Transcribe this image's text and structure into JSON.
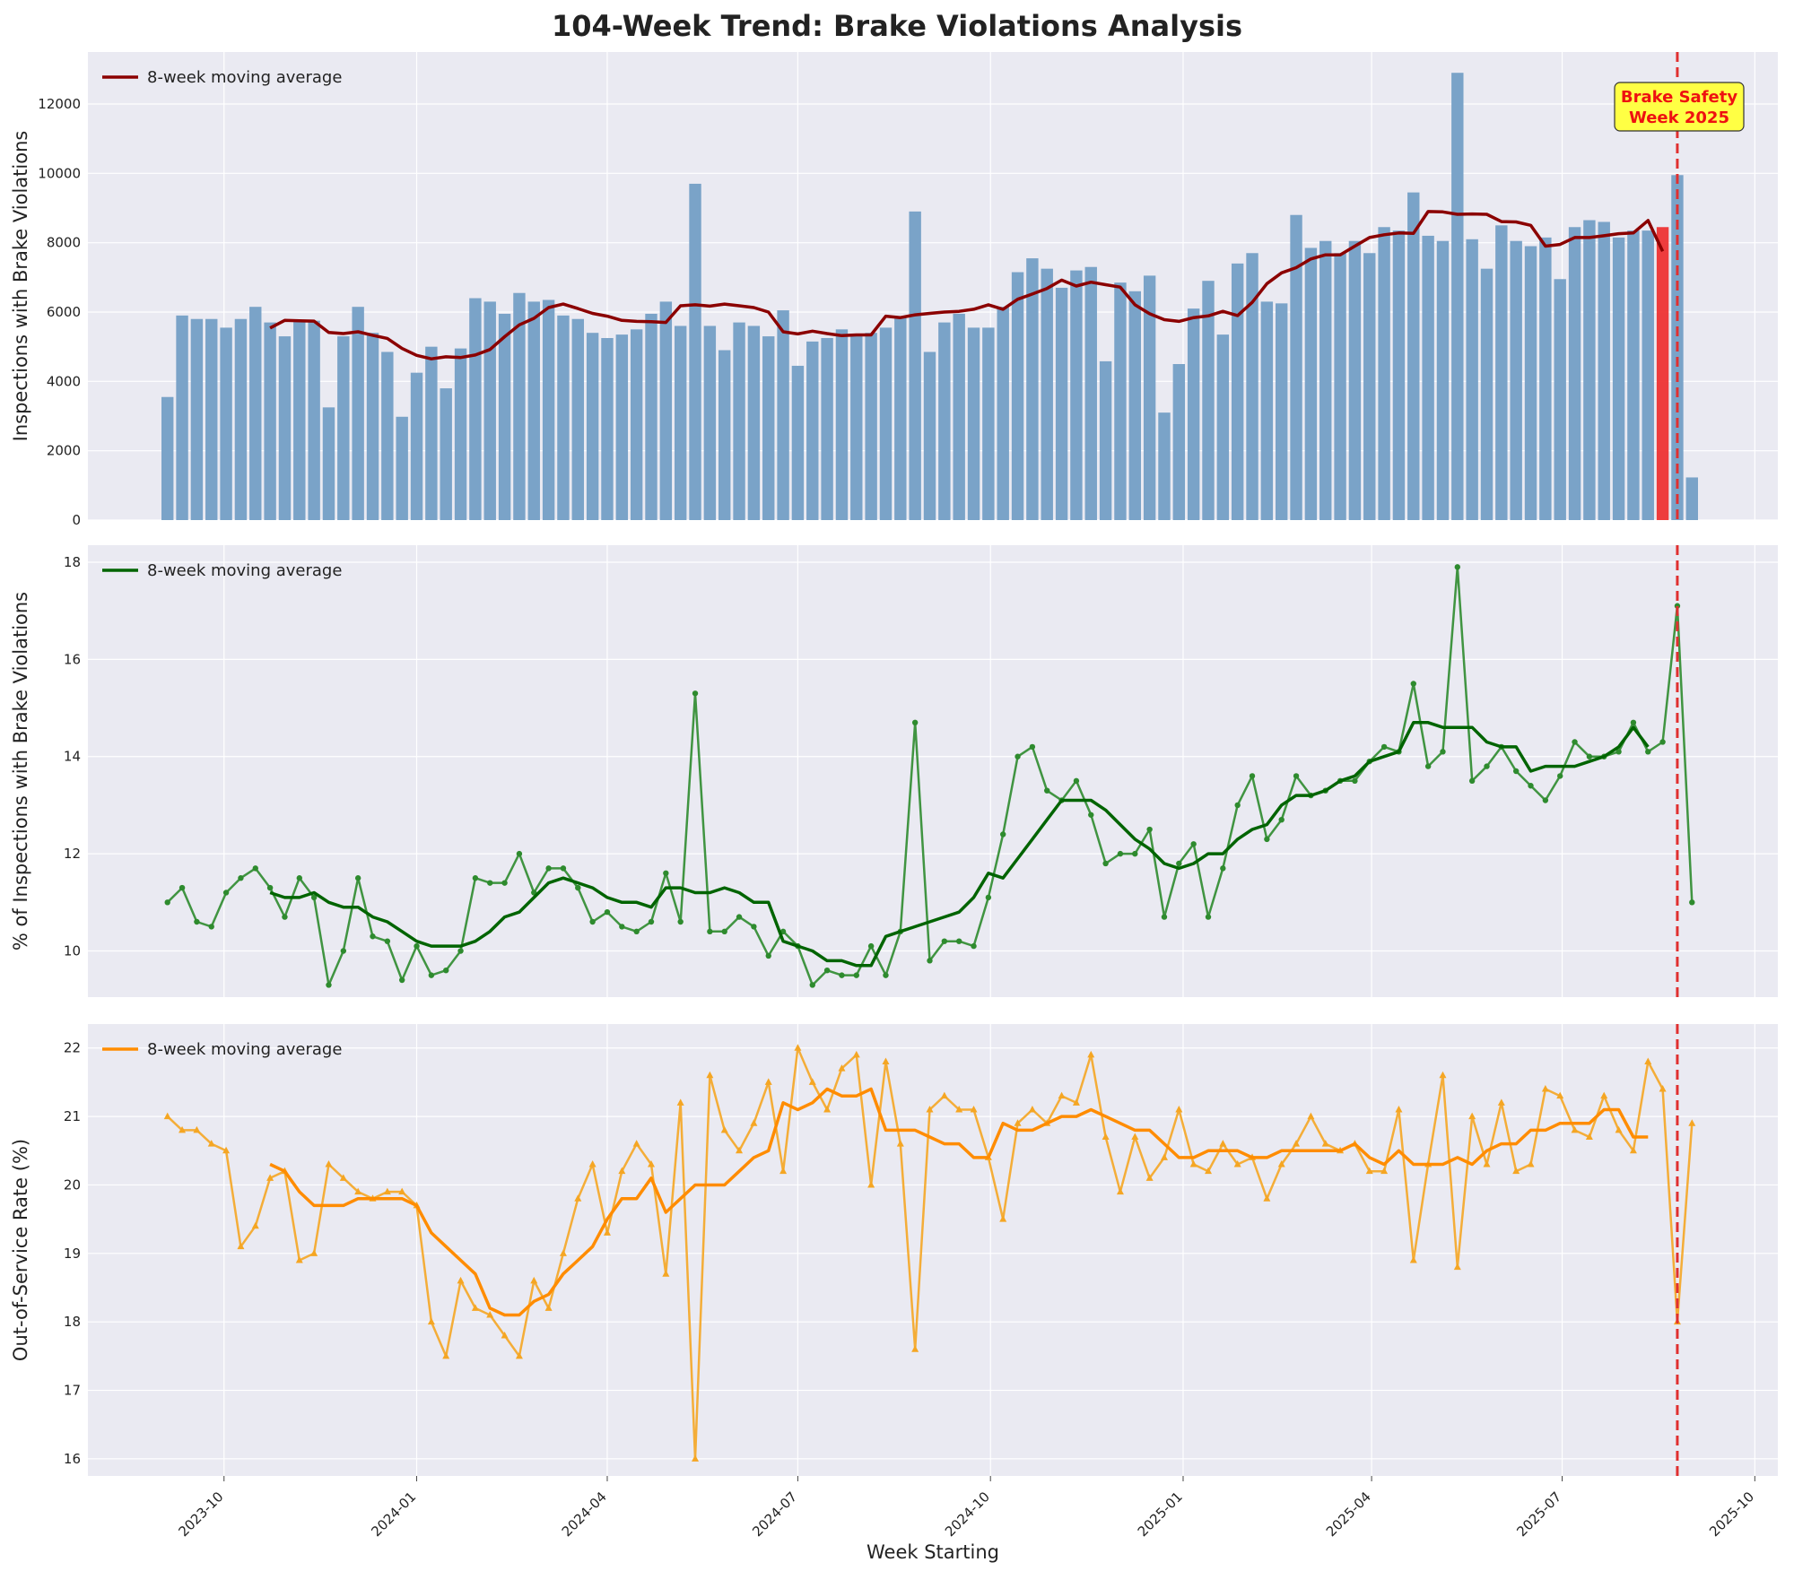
{
  "figure_title": "104-Week Trend: Brake Violations Analysis",
  "annotation": {
    "line1": "Brake Safety",
    "line2": "Week 2025",
    "event_date": "2025-08-25"
  },
  "colors": {
    "panel_bg": "#eaeaf2",
    "grid": "#ffffff",
    "bar": "#7aa3c8",
    "bar_highlight": "#ee3333",
    "event_line": "#e03030",
    "annot_box": "#ffff44",
    "annot_text": "#ee1111",
    "p1_ma": "#8b0000",
    "p2_line": "#2e8b2e",
    "p2_ma": "#006400",
    "p3_line": "#f5a623",
    "p3_ma": "#ff8c00"
  },
  "chart_data": [
    {
      "type": "bar",
      "ylabel": "Inspections with Brake Violations",
      "legend": "8-week moving average",
      "legend_position": "top-left",
      "ylim": [
        0,
        13500
      ],
      "yticks": [
        0,
        2000,
        4000,
        6000,
        8000,
        10000,
        12000
      ],
      "grid": true,
      "start_date": "2023-09-04",
      "highlight_index": 102,
      "values": [
        3550,
        5900,
        5800,
        5800,
        5550,
        5800,
        6150,
        5700,
        5300,
        5750,
        5750,
        3250,
        5300,
        6150,
        5400,
        4850,
        2980,
        4250,
        5000,
        3800,
        4950,
        6400,
        6300,
        5950,
        6550,
        6300,
        6350,
        5900,
        5800,
        5400,
        5250,
        5350,
        5500,
        5950,
        6300,
        5600,
        9700,
        5600,
        4900,
        5700,
        5600,
        5300,
        6050,
        4450,
        5150,
        5250,
        5500,
        5300,
        5400,
        5550,
        5850,
        8900,
        4850,
        5700,
        5950,
        5550,
        5550,
        6150,
        7150,
        7550,
        7250,
        6700,
        7200,
        7300,
        4580,
        6850,
        6600,
        7050,
        3100,
        4500,
        6100,
        6900,
        5350,
        7400,
        7700,
        6300,
        6250,
        8800,
        7850,
        8050,
        7700,
        8050,
        7700,
        8450,
        8350,
        9450,
        8200,
        8050,
        12900,
        8100,
        7250,
        8500,
        8050,
        7900,
        8150,
        6950,
        8450,
        8650,
        8600,
        8150,
        8350,
        8350,
        8450,
        9950,
        1230
      ],
      "ma": [
        null,
        null,
        null,
        null,
        null,
        null,
        null,
        5540,
        5760,
        5750,
        5740,
        5410,
        5380,
        5430,
        5330,
        5240,
        4950,
        4750,
        4650,
        4710,
        4690,
        4760,
        4920,
        5290,
        5630,
        5820,
        6130,
        6230,
        6100,
        5960,
        5880,
        5760,
        5730,
        5720,
        5700,
        6180,
        6210,
        6170,
        6230,
        6180,
        6130,
        6000,
        5430,
        5370,
        5450,
        5380,
        5320,
        5340,
        5340,
        5880,
        5840,
        5920,
        5960,
        6000,
        6020,
        6080,
        6210,
        6080,
        6370,
        6520,
        6680,
        6920,
        6750,
        6860,
        6790,
        6720,
        6210,
        5950,
        5780,
        5730,
        5840,
        5890,
        6020,
        5900,
        6280,
        6820,
        7130,
        7280,
        7530,
        7650,
        7650,
        7900,
        8150,
        8230,
        8280,
        8270,
        8900,
        8890,
        8820,
        8830,
        8820,
        8610,
        8600,
        8500,
        7900,
        7950,
        8150,
        8150,
        8200,
        8260,
        8280,
        8640,
        7750,
        null,
        null
      ]
    },
    {
      "type": "line",
      "ylabel": "% of Inspections with Brake Violations",
      "legend": "8-week moving average",
      "legend_position": "top-left",
      "ylim": [
        9.05,
        18.35
      ],
      "yticks": [
        10,
        12,
        14,
        16,
        18
      ],
      "grid": true,
      "values": [
        11.0,
        11.3,
        10.6,
        10.5,
        11.2,
        11.5,
        11.7,
        11.3,
        10.7,
        11.5,
        11.1,
        9.3,
        10.0,
        11.5,
        10.3,
        10.2,
        9.4,
        10.1,
        9.5,
        9.6,
        10.0,
        11.5,
        11.4,
        11.4,
        12.0,
        11.2,
        11.7,
        11.7,
        11.3,
        10.6,
        10.8,
        10.5,
        10.4,
        10.6,
        11.6,
        10.6,
        15.3,
        10.4,
        10.4,
        10.7,
        10.5,
        9.9,
        10.4,
        10.1,
        9.3,
        9.6,
        9.5,
        9.5,
        10.1,
        9.5,
        10.4,
        14.7,
        9.8,
        10.2,
        10.2,
        10.1,
        11.1,
        12.4,
        14.0,
        14.2,
        13.3,
        13.1,
        13.5,
        12.8,
        11.8,
        12.0,
        12.0,
        12.5,
        10.7,
        11.8,
        12.2,
        10.7,
        11.7,
        13.0,
        13.6,
        12.3,
        12.7,
        13.6,
        13.2,
        13.3,
        13.5,
        13.5,
        13.9,
        14.2,
        14.1,
        15.5,
        13.8,
        14.1,
        17.9,
        13.5,
        13.8,
        14.2,
        13.7,
        13.4,
        13.1,
        13.6,
        14.3,
        14.0,
        14.0,
        14.1,
        14.7,
        14.1,
        14.3,
        17.1,
        11.0
      ],
      "ma": [
        null,
        null,
        null,
        null,
        null,
        null,
        null,
        11.2,
        11.1,
        11.1,
        11.2,
        11.0,
        10.9,
        10.9,
        10.7,
        10.6,
        10.4,
        10.2,
        10.1,
        10.1,
        10.1,
        10.2,
        10.4,
        10.7,
        10.8,
        11.1,
        11.4,
        11.5,
        11.4,
        11.3,
        11.1,
        11.0,
        11.0,
        10.9,
        11.3,
        11.3,
        11.2,
        11.2,
        11.3,
        11.2,
        11.0,
        11.0,
        10.2,
        10.1,
        10.0,
        9.8,
        9.8,
        9.7,
        9.7,
        10.3,
        10.4,
        10.5,
        10.6,
        10.7,
        10.8,
        11.1,
        11.6,
        11.5,
        11.9,
        12.3,
        12.7,
        13.1,
        13.1,
        13.1,
        12.9,
        12.6,
        12.3,
        12.1,
        11.8,
        11.7,
        11.8,
        12.0,
        12.0,
        12.3,
        12.5,
        12.6,
        13.0,
        13.2,
        13.2,
        13.3,
        13.5,
        13.6,
        13.9,
        14.0,
        14.1,
        14.7,
        14.7,
        14.6,
        14.6,
        14.6,
        14.3,
        14.2,
        14.2,
        13.7,
        13.8,
        13.8,
        13.8,
        13.9,
        14.0,
        14.2,
        14.6,
        14.2,
        null,
        null,
        null
      ]
    },
    {
      "type": "line",
      "ylabel": "Out-of-Service Rate (%)",
      "xlabel": "Week Starting",
      "legend": "8-week moving average",
      "legend_position": "top-left",
      "ylim": [
        15.75,
        22.35
      ],
      "yticks": [
        16,
        17,
        18,
        19,
        20,
        21,
        22
      ],
      "xticks": [
        "2023-10",
        "2024-01",
        "2024-04",
        "2024-07",
        "2024-10",
        "2025-01",
        "2025-04",
        "2025-07",
        "2025-10"
      ],
      "xtick_dates": [
        "2023-10-01",
        "2024-01-01",
        "2024-04-01",
        "2024-07-01",
        "2024-10-01",
        "2025-01-01",
        "2025-04-01",
        "2025-07-01",
        "2025-10-01"
      ],
      "grid": true,
      "values": [
        21.0,
        20.8,
        20.8,
        20.6,
        20.5,
        19.1,
        19.4,
        20.1,
        20.2,
        18.9,
        19.0,
        20.3,
        20.1,
        19.9,
        19.8,
        19.9,
        19.9,
        19.7,
        18.0,
        17.5,
        18.6,
        18.2,
        18.1,
        17.8,
        17.5,
        18.6,
        18.2,
        19.0,
        19.8,
        20.3,
        19.3,
        20.2,
        20.6,
        20.3,
        18.7,
        21.2,
        16.0,
        21.6,
        20.8,
        20.5,
        20.9,
        21.5,
        20.2,
        22.0,
        21.5,
        21.1,
        21.7,
        21.9,
        20.0,
        21.8,
        20.6,
        17.6,
        21.1,
        21.3,
        21.1,
        21.1,
        20.4,
        19.5,
        20.9,
        21.1,
        20.9,
        21.3,
        21.2,
        21.9,
        20.7,
        19.9,
        20.7,
        20.1,
        20.4,
        21.1,
        20.3,
        20.2,
        20.6,
        20.3,
        20.4,
        19.8,
        20.3,
        20.6,
        21.0,
        20.6,
        20.5,
        20.6,
        20.2,
        20.2,
        21.1,
        18.9,
        20.3,
        21.6,
        18.8,
        21.0,
        20.3,
        21.2,
        20.2,
        20.3,
        21.4,
        21.3,
        20.8,
        20.7,
        21.3,
        20.8,
        20.5,
        21.8,
        21.4,
        18.0,
        20.9
      ],
      "ma": [
        null,
        null,
        null,
        null,
        null,
        null,
        null,
        20.3,
        20.2,
        19.9,
        19.7,
        19.7,
        19.7,
        19.8,
        19.8,
        19.8,
        19.8,
        19.7,
        19.3,
        19.1,
        18.9,
        18.7,
        18.2,
        18.1,
        18.1,
        18.3,
        18.4,
        18.7,
        18.9,
        19.1,
        19.5,
        19.8,
        19.8,
        20.1,
        19.6,
        19.8,
        20.0,
        20.0,
        20.0,
        20.2,
        20.4,
        20.5,
        21.2,
        21.1,
        21.2,
        21.4,
        21.3,
        21.3,
        21.4,
        20.8,
        20.8,
        20.8,
        20.7,
        20.6,
        20.6,
        20.4,
        20.4,
        20.9,
        20.8,
        20.8,
        20.9,
        21.0,
        21.0,
        21.1,
        21.0,
        20.9,
        20.8,
        20.8,
        20.6,
        20.4,
        20.4,
        20.5,
        20.5,
        20.5,
        20.4,
        20.4,
        20.5,
        20.5,
        20.5,
        20.5,
        20.5,
        20.6,
        20.4,
        20.3,
        20.5,
        20.3,
        20.3,
        20.3,
        20.4,
        20.3,
        20.5,
        20.6,
        20.6,
        20.8,
        20.8,
        20.9,
        20.9,
        20.9,
        21.1,
        21.1,
        20.7,
        20.7,
        null,
        null,
        null
      ]
    }
  ]
}
